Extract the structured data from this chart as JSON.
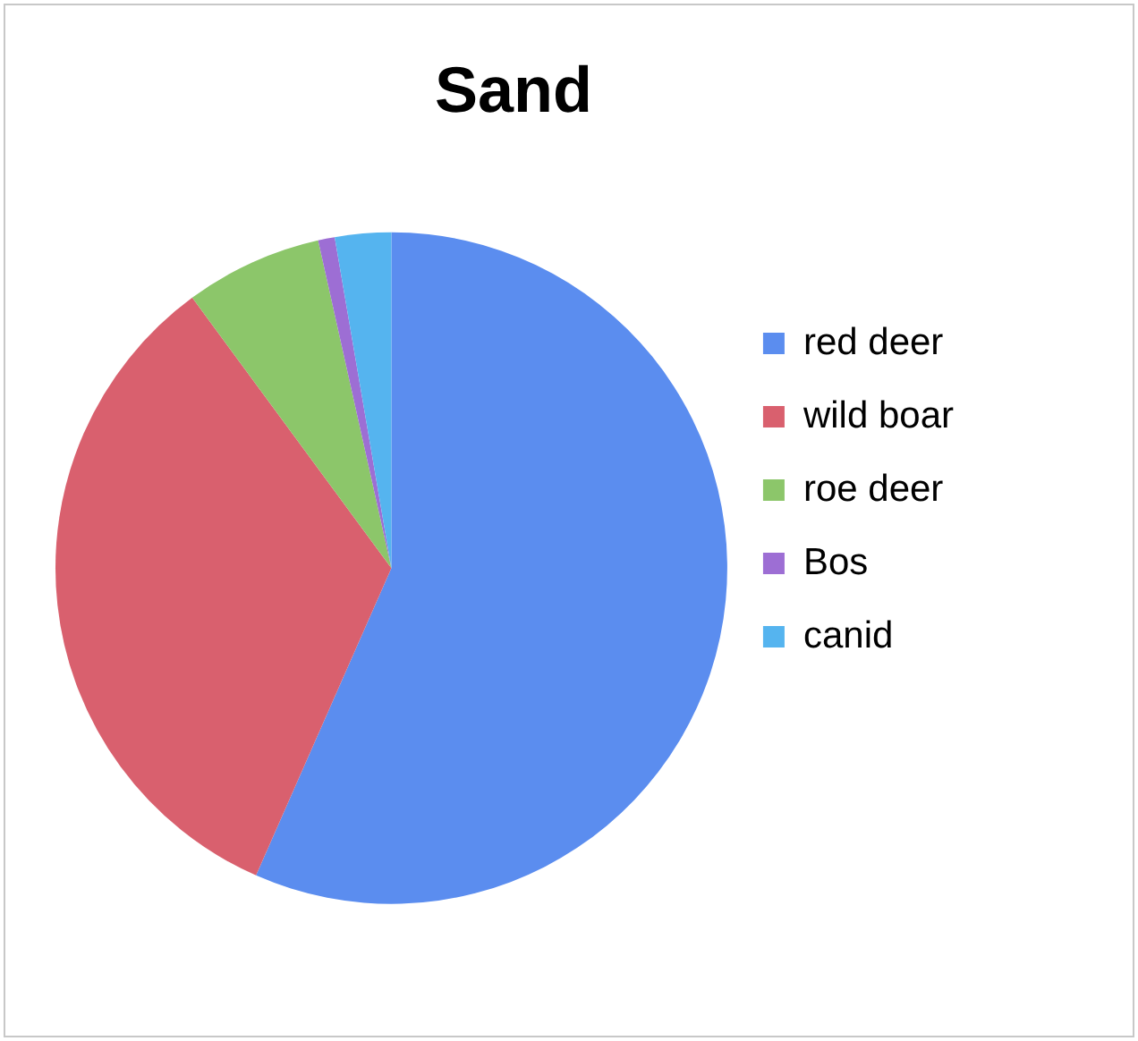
{
  "chart_data": {
    "type": "pie",
    "title": "Sand",
    "categories": [
      "red deer",
      "wild boar",
      "roe deer",
      "Bos",
      "canid"
    ],
    "values": [
      56.6,
      33.3,
      6.6,
      0.8,
      2.7
    ],
    "colors": [
      "#5b8def",
      "#d9606e",
      "#8cc66a",
      "#9d6ed4",
      "#55b4ef"
    ],
    "legend": "right"
  }
}
